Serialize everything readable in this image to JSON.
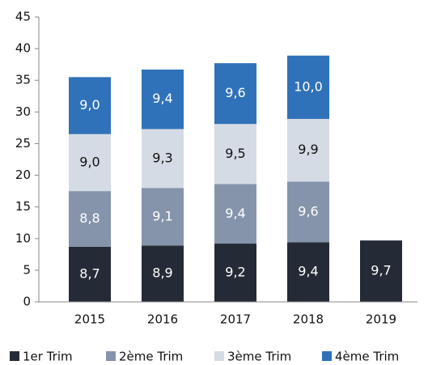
{
  "chart_data": {
    "type": "stacked_bar",
    "categories": [
      "2015",
      "2016",
      "2017",
      "2018",
      "2019"
    ],
    "series": [
      {
        "name": "1er Trim",
        "color": "#252b36",
        "values": [
          8.7,
          8.9,
          9.2,
          9.4,
          9.7
        ],
        "value_labels": [
          "8,7",
          "8,9",
          "9,2",
          "9,4",
          "9,7"
        ]
      },
      {
        "name": "2ème Trim",
        "color": "#8594ab",
        "values": [
          8.8,
          9.1,
          9.4,
          9.6,
          null
        ],
        "value_labels": [
          "8,8",
          "9,1",
          "9,4",
          "9,6",
          null
        ]
      },
      {
        "name": "3ème Trim",
        "color": "#d5dbe5",
        "values": [
          9.0,
          9.3,
          9.5,
          9.9,
          null
        ],
        "value_labels": [
          "9,0",
          "9,3",
          "9,5",
          "9,9",
          null
        ]
      },
      {
        "name": "4ème Trim",
        "color": "#2f72b9",
        "values": [
          9.0,
          9.4,
          9.6,
          10.0,
          null
        ],
        "value_labels": [
          "9,0",
          "9,4",
          "9,6",
          "10,0",
          null
        ]
      }
    ],
    "ylim": [
      0,
      45
    ],
    "yticks": [
      0,
      5,
      10,
      15,
      20,
      25,
      30,
      35,
      40,
      45
    ],
    "grid": false,
    "legend": "bottom"
  }
}
